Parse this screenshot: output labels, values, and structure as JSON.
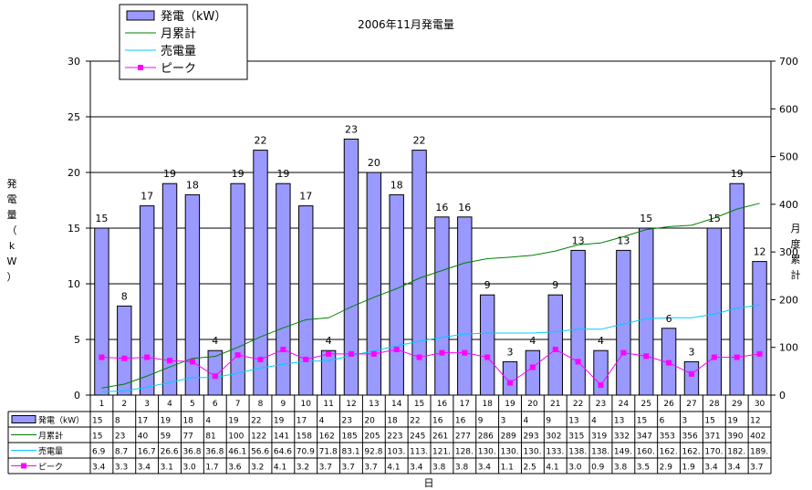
{
  "chart_data": {
    "type": "bar",
    "title": "2006年11月発電量",
    "xlabel": "日",
    "ylabel": "発電量（kW）",
    "y2label": "月度累計",
    "ylim": [
      0,
      30
    ],
    "y2lim": [
      0,
      700
    ],
    "yticks": [
      "0",
      "5",
      "10",
      "15",
      "20",
      "25",
      "30"
    ],
    "y2ticks": [
      "0",
      "100",
      "200",
      "300",
      "400",
      "500",
      "600",
      "700"
    ],
    "categories": [
      "1",
      "2",
      "3",
      "4",
      "5",
      "6",
      "7",
      "8",
      "9",
      "10",
      "11",
      "12",
      "13",
      "14",
      "15",
      "16",
      "17",
      "18",
      "19",
      "20",
      "21",
      "22",
      "23",
      "24",
      "25",
      "26",
      "27",
      "28",
      "29",
      "30"
    ],
    "grid": true,
    "legend_position": "top-left",
    "series": [
      {
        "name": "発電（kW）",
        "type": "bar",
        "axis": "left",
        "color": "#9999ff",
        "values": [
          15,
          8,
          17,
          19,
          18,
          4,
          19,
          22,
          19,
          17,
          4,
          23,
          20,
          18,
          22,
          16,
          16,
          9,
          3,
          4,
          9,
          13,
          4,
          13,
          15,
          6,
          3,
          15,
          19,
          12
        ],
        "table_labels": [
          "15",
          "8",
          "17",
          "19",
          "18",
          "4",
          "19",
          "22",
          "19",
          "17",
          "4",
          "23",
          "20",
          "18",
          "22",
          "16",
          "16",
          "9",
          "3",
          "4",
          "9",
          "13",
          "4",
          "13",
          "15",
          "6",
          "3",
          "15",
          "19",
          "12"
        ]
      },
      {
        "name": "月累計",
        "type": "line",
        "axis": "right",
        "color": "#008000",
        "values": [
          15,
          23,
          40,
          59,
          77,
          81,
          100,
          122,
          141,
          158,
          162,
          185,
          205,
          223,
          245,
          261,
          277,
          286,
          289,
          293,
          302,
          315,
          319,
          332,
          347,
          353,
          356,
          371,
          390,
          402
        ],
        "table_labels": [
          "15",
          "23",
          "40",
          "59",
          "77",
          "81",
          "100",
          "122",
          "141",
          "158",
          "162",
          "185",
          "205",
          "223",
          "245",
          "261",
          "277",
          "286",
          "289",
          "293",
          "302",
          "315",
          "319",
          "332",
          "347",
          "353",
          "356",
          "371",
          "390",
          "402"
        ]
      },
      {
        "name": "売電量",
        "type": "line",
        "axis": "right",
        "color": "#00ccff",
        "values": [
          6.9,
          8.7,
          16.7,
          26.6,
          36.8,
          36.8,
          46.1,
          56.6,
          64.6,
          70.9,
          71.8,
          83.1,
          92.8,
          103,
          113,
          121,
          128,
          130,
          130,
          130,
          133,
          138,
          138,
          149,
          160,
          162,
          162,
          170,
          182,
          189
        ],
        "table_labels": [
          "6.9",
          "8.7",
          "16.7",
          "26.6",
          "36.8",
          "36.8",
          "46.1",
          "56.6",
          "64.6",
          "70.9",
          "71.8",
          "83.1",
          "92.8",
          "103.",
          "113.",
          "121.",
          "128.",
          "130.",
          "130.",
          "130.",
          "133.",
          "138.",
          "138.",
          "149.",
          "160.",
          "162.",
          "162.",
          "170.",
          "182.",
          "189."
        ]
      },
      {
        "name": "ピーク",
        "type": "line",
        "axis": "left",
        "color": "#ff00ff",
        "values": [
          3.4,
          3.3,
          3.4,
          3.1,
          3.0,
          1.7,
          3.6,
          3.2,
          4.1,
          3.2,
          3.7,
          3.7,
          3.7,
          4.1,
          3.4,
          3.8,
          3.8,
          3.4,
          1.1,
          2.5,
          4.1,
          3.0,
          0.9,
          3.8,
          3.5,
          2.9,
          1.9,
          3.4,
          3.4,
          3.7
        ],
        "table_labels": [
          "3.4",
          "3.3",
          "3.4",
          "3.1",
          "3.0",
          "1.7",
          "3.6",
          "3.2",
          "4.1",
          "3.2",
          "3.7",
          "3.7",
          "3.7",
          "4.1",
          "3.4",
          "3.8",
          "3.8",
          "3.4",
          "1.1",
          "2.5",
          "4.1",
          "3.0",
          "0.9",
          "3.8",
          "3.5",
          "2.9",
          "1.9",
          "3.4",
          "3.4",
          "3.7"
        ]
      }
    ],
    "table_row_labels": [
      "発電（kW）",
      "月累計",
      "売電量",
      "ピーク"
    ]
  }
}
